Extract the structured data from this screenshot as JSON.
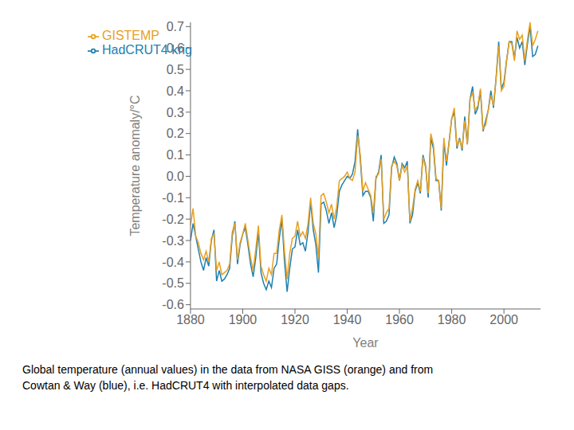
{
  "chart_data": {
    "type": "line",
    "x": [
      1880,
      1881,
      1882,
      1883,
      1884,
      1885,
      1886,
      1887,
      1888,
      1889,
      1890,
      1891,
      1892,
      1893,
      1894,
      1895,
      1896,
      1897,
      1898,
      1899,
      1900,
      1901,
      1902,
      1903,
      1904,
      1905,
      1906,
      1907,
      1908,
      1909,
      1910,
      1911,
      1912,
      1913,
      1914,
      1915,
      1916,
      1917,
      1918,
      1919,
      1920,
      1921,
      1922,
      1923,
      1924,
      1925,
      1926,
      1927,
      1928,
      1929,
      1930,
      1931,
      1932,
      1933,
      1934,
      1935,
      1936,
      1937,
      1938,
      1939,
      1940,
      1941,
      1942,
      1943,
      1944,
      1945,
      1946,
      1947,
      1948,
      1949,
      1950,
      1951,
      1952,
      1953,
      1954,
      1955,
      1956,
      1957,
      1958,
      1959,
      1960,
      1961,
      1962,
      1963,
      1964,
      1965,
      1966,
      1967,
      1968,
      1969,
      1970,
      1971,
      1972,
      1973,
      1974,
      1975,
      1976,
      1977,
      1978,
      1979,
      1980,
      1981,
      1982,
      1983,
      1984,
      1985,
      1986,
      1987,
      1988,
      1989,
      1990,
      1991,
      1992,
      1993,
      1994,
      1995,
      1996,
      1997,
      1998,
      1999,
      2000,
      2001,
      2002,
      2003,
      2004,
      2005,
      2006,
      2007,
      2008,
      2009,
      2010,
      2011,
      2012,
      2013
    ],
    "series": [
      {
        "name": "HadCRUT4 krig",
        "color": "#2080B0",
        "values": [
          -0.3,
          -0.22,
          -0.28,
          -0.34,
          -0.4,
          -0.44,
          -0.38,
          -0.42,
          -0.3,
          -0.25,
          -0.49,
          -0.44,
          -0.49,
          -0.48,
          -0.46,
          -0.43,
          -0.28,
          -0.21,
          -0.41,
          -0.32,
          -0.27,
          -0.24,
          -0.32,
          -0.41,
          -0.47,
          -0.38,
          -0.26,
          -0.45,
          -0.5,
          -0.53,
          -0.49,
          -0.52,
          -0.43,
          -0.41,
          -0.29,
          -0.2,
          -0.4,
          -0.54,
          -0.43,
          -0.34,
          -0.33,
          -0.25,
          -0.32,
          -0.31,
          -0.35,
          -0.26,
          -0.12,
          -0.25,
          -0.32,
          -0.45,
          -0.13,
          -0.12,
          -0.16,
          -0.22,
          -0.17,
          -0.24,
          -0.18,
          -0.07,
          -0.04,
          -0.02,
          0.0,
          -0.01,
          0.01,
          0.07,
          0.22,
          0.08,
          -0.09,
          -0.07,
          -0.07,
          -0.1,
          -0.21,
          -0.01,
          0.02,
          0.1,
          -0.22,
          -0.21,
          -0.18,
          0.04,
          0.09,
          0.06,
          -0.02,
          0.06,
          0.04,
          0.07,
          -0.22,
          -0.18,
          -0.07,
          -0.03,
          -0.08,
          0.1,
          0.05,
          -0.1,
          0.18,
          0.13,
          -0.02,
          -0.02,
          -0.16,
          0.16,
          0.05,
          0.16,
          0.27,
          0.3,
          0.13,
          0.18,
          0.12,
          0.28,
          0.15,
          0.36,
          0.42,
          0.29,
          0.32,
          0.4,
          0.21,
          0.26,
          0.31,
          0.4,
          0.32,
          0.46,
          0.63,
          0.41,
          0.44,
          0.54,
          0.63,
          0.63,
          0.55,
          0.65,
          0.6,
          0.63,
          0.52,
          0.62,
          0.7,
          0.56,
          0.57,
          0.61
        ]
      },
      {
        "name": "GISTEMP",
        "color": "#E8A020",
        "values": [
          -0.23,
          -0.15,
          -0.28,
          -0.31,
          -0.36,
          -0.39,
          -0.35,
          -0.4,
          -0.29,
          -0.27,
          -0.44,
          -0.4,
          -0.46,
          -0.45,
          -0.44,
          -0.41,
          -0.26,
          -0.22,
          -0.39,
          -0.31,
          -0.27,
          -0.22,
          -0.3,
          -0.38,
          -0.44,
          -0.34,
          -0.23,
          -0.42,
          -0.46,
          -0.49,
          -0.43,
          -0.46,
          -0.36,
          -0.36,
          -0.25,
          -0.18,
          -0.35,
          -0.48,
          -0.36,
          -0.29,
          -0.28,
          -0.21,
          -0.28,
          -0.26,
          -0.29,
          -0.22,
          -0.1,
          -0.22,
          -0.27,
          -0.38,
          -0.09,
          -0.08,
          -0.12,
          -0.17,
          -0.13,
          -0.2,
          -0.14,
          -0.02,
          -0.01,
          0.0,
          0.02,
          -0.01,
          -0.02,
          0.02,
          0.19,
          0.1,
          -0.07,
          -0.03,
          -0.06,
          -0.09,
          -0.17,
          0.0,
          0.01,
          0.08,
          -0.2,
          -0.17,
          -0.15,
          0.05,
          0.07,
          0.05,
          -0.02,
          0.05,
          0.02,
          0.05,
          -0.21,
          -0.15,
          -0.06,
          -0.02,
          -0.07,
          0.09,
          0.04,
          -0.08,
          0.2,
          0.15,
          -0.01,
          -0.02,
          -0.15,
          0.18,
          0.07,
          0.16,
          0.27,
          0.32,
          0.14,
          0.17,
          0.13,
          0.26,
          0.15,
          0.36,
          0.39,
          0.31,
          0.33,
          0.41,
          0.22,
          0.24,
          0.31,
          0.38,
          0.33,
          0.46,
          0.61,
          0.4,
          0.42,
          0.54,
          0.63,
          0.62,
          0.54,
          0.68,
          0.64,
          0.66,
          0.54,
          0.64,
          0.72,
          0.61,
          0.64,
          0.68
        ]
      }
    ],
    "x_label": "Year",
    "y_label": "Temperature anomaly/°C",
    "xlim": [
      1880,
      2014
    ],
    "ylim": [
      -0.62,
      0.72
    ],
    "xticks": [
      1880,
      1900,
      1920,
      1940,
      1960,
      1980,
      2000
    ],
    "yticks": [
      -0.6,
      -0.5,
      -0.4,
      -0.3,
      -0.2,
      -0.1,
      {
        "value": 0,
        "label": "0.0"
      },
      0.1,
      0.2,
      0.3,
      0.4,
      0.5,
      0.6,
      0.7
    ],
    "grid": false,
    "legend": "upper left",
    "annotations": [
      "Global temperature (annual values) in the data from NASA GISS (orange) and from\nCowtan & Way (blue), i.e. HadCRUT4 with interpolated data gaps."
    ]
  }
}
